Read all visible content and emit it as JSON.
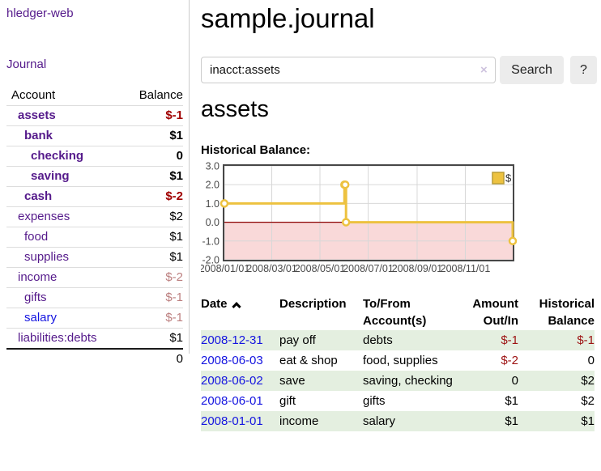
{
  "app": {
    "brand": "hledger-web",
    "nav": {
      "journal": "Journal"
    }
  },
  "colors": {
    "link_purple": "#551a8b",
    "link_blue": "#1414e0",
    "negative_strong": "#a00000",
    "negative_faded": "#bc7f7f",
    "row_green": "#e4efe0",
    "chart_gold": "#edc240",
    "chart_gold_border": "#b89c35",
    "chart_pink": "#f9d9d9",
    "zero_line_red": "#8b0000",
    "chart_frame": "#474747",
    "grid_line": "#d8d8d8",
    "axis_text": "#4a4a4a"
  },
  "sidebar": {
    "accounts_table": {
      "headers": {
        "account": "Account",
        "balance": "Balance"
      },
      "rows": [
        {
          "name": "assets",
          "balance": "$-1",
          "depth": 1,
          "bold": true,
          "bal_class": "neg-strong",
          "name_class": ""
        },
        {
          "name": "bank",
          "balance": "$1",
          "depth": 2,
          "bold": true,
          "bal_class": "",
          "name_class": ""
        },
        {
          "name": "checking",
          "balance": "0",
          "depth": 3,
          "bold": true,
          "bal_class": "",
          "name_class": ""
        },
        {
          "name": "saving",
          "balance": "$1",
          "depth": 3,
          "bold": true,
          "bal_class": "",
          "name_class": ""
        },
        {
          "name": "cash",
          "balance": "$-2",
          "depth": 2,
          "bold": true,
          "bal_class": "neg-strong",
          "name_class": ""
        },
        {
          "name": "expenses",
          "balance": "$2",
          "depth": 1,
          "bold": false,
          "bal_class": "",
          "name_class": ""
        },
        {
          "name": "food",
          "balance": "$1",
          "depth": 2,
          "bold": false,
          "bal_class": "",
          "name_class": ""
        },
        {
          "name": "supplies",
          "balance": "$1",
          "depth": 2,
          "bold": false,
          "bal_class": "",
          "name_class": ""
        },
        {
          "name": "income",
          "balance": "$-2",
          "depth": 1,
          "bold": false,
          "bal_class": "neg-faded",
          "name_class": ""
        },
        {
          "name": "gifts",
          "balance": "$-1",
          "depth": 2,
          "bold": false,
          "bal_class": "neg-faded",
          "name_class": ""
        },
        {
          "name": "salary",
          "balance": "$-1",
          "depth": 2,
          "bold": false,
          "bal_class": "neg-faded",
          "name_class": "blue"
        },
        {
          "name": "liabilities:debts",
          "balance": "$1",
          "depth": 1,
          "bold": false,
          "bal_class": "",
          "name_class": ""
        }
      ],
      "total": "0"
    }
  },
  "main": {
    "title": "sample.journal",
    "search": {
      "value": "inacct:assets",
      "clear_icon": "×",
      "button_label": "Search",
      "help_label": "?"
    },
    "account_heading": "assets",
    "chart_label": "Historical Balance:",
    "register_table": {
      "headers": [
        {
          "lines": [
            "Date"
          ],
          "align": "left",
          "sort": "asc"
        },
        {
          "lines": [
            "Description"
          ],
          "align": "left"
        },
        {
          "lines": [
            "To/From",
            "Account(s)"
          ],
          "align": "left"
        },
        {
          "lines": [
            "Amount",
            "Out/In"
          ],
          "align": "right"
        },
        {
          "lines": [
            "Historical",
            "Balance"
          ],
          "align": "right"
        }
      ],
      "rows": [
        {
          "date": "2008-12-31",
          "description": "pay off",
          "accounts": "debts",
          "amount": "$-1",
          "amount_neg": true,
          "balance": "$-1",
          "balance_neg": true,
          "shaded": true
        },
        {
          "date": "2008-06-03",
          "description": "eat & shop",
          "accounts": "food, supplies",
          "amount": "$-2",
          "amount_neg": true,
          "balance": "0",
          "balance_neg": false,
          "shaded": false
        },
        {
          "date": "2008-06-02",
          "description": "save",
          "accounts": "saving, checking",
          "amount": "0",
          "amount_neg": false,
          "balance": "$2",
          "balance_neg": false,
          "shaded": true
        },
        {
          "date": "2008-06-01",
          "description": "gift",
          "accounts": "gifts",
          "amount": "$1",
          "amount_neg": false,
          "balance": "$2",
          "balance_neg": false,
          "shaded": false
        },
        {
          "date": "2008-01-01",
          "description": "income",
          "accounts": "salary",
          "amount": "$1",
          "amount_neg": false,
          "balance": "$1",
          "balance_neg": false,
          "shaded": true
        }
      ]
    }
  },
  "chart_data": {
    "type": "line",
    "title": "Historical Balance",
    "step": true,
    "legend": {
      "label": "$",
      "position": "top-right"
    },
    "grid": true,
    "x_axis": {
      "domain_days": [
        0,
        365
      ],
      "ticks": [
        {
          "label": "2008/01/01",
          "day": 0
        },
        {
          "label": "2008/03/01",
          "day": 60
        },
        {
          "label": "2008/05/01",
          "day": 121
        },
        {
          "label": "2008/07/01",
          "day": 182
        },
        {
          "label": "2008/09/01",
          "day": 244
        },
        {
          "label": "2008/11/01",
          "day": 305
        }
      ]
    },
    "y_axis": {
      "ticks": [
        3.0,
        2.0,
        1.0,
        0.0,
        -1.0,
        -2.0
      ],
      "min": -2.0,
      "max": 3.0
    },
    "negative_region": {
      "from": 0.0,
      "to": -2.0
    },
    "series": [
      {
        "name": "$",
        "points": [
          {
            "date": "2008-01-01",
            "day": 0,
            "value": 1.0
          },
          {
            "date": "2008-06-01",
            "day": 152,
            "value": 2.0
          },
          {
            "date": "2008-06-02",
            "day": 153,
            "value": 2.0
          },
          {
            "date": "2008-06-03",
            "day": 154,
            "value": 0.0
          },
          {
            "date": "2008-12-31",
            "day": 365,
            "value": -1.0
          }
        ]
      }
    ]
  }
}
